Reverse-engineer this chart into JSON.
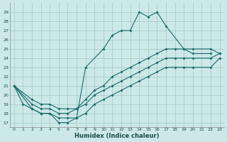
{
  "xlabel": "Humidex (Indice chaleur)",
  "bg_color": "#cce8e8",
  "grid_color": "#aacccc",
  "line_color": "#1a6b6b",
  "xlim": [
    -0.5,
    23.5
  ],
  "ylim": [
    16.5,
    30
  ],
  "xticks": [
    0,
    1,
    2,
    3,
    4,
    5,
    6,
    7,
    8,
    9,
    10,
    11,
    12,
    13,
    14,
    15,
    16,
    17,
    18,
    19,
    20,
    21,
    22,
    23
  ],
  "yticks": [
    17,
    18,
    19,
    20,
    21,
    22,
    23,
    24,
    25,
    26,
    27,
    28,
    29
  ],
  "series1_x": [
    0,
    1,
    2,
    3,
    4,
    5,
    6,
    7,
    8,
    10,
    11,
    12,
    13,
    14,
    15,
    16,
    17,
    19,
    20,
    22
  ],
  "series1_y": [
    21,
    19,
    18.5,
    18,
    18,
    17,
    17,
    17.5,
    23,
    25,
    26.5,
    27,
    27,
    29,
    28.5,
    29,
    27.5,
    25,
    24.5,
    24.5
  ],
  "series2_x": [
    0,
    2,
    3,
    4,
    5,
    6,
    7,
    8,
    9,
    10,
    11,
    12,
    13,
    14,
    15,
    16,
    17,
    18,
    19,
    20,
    22,
    23
  ],
  "series2_y": [
    21,
    19.5,
    19,
    19,
    18.5,
    18.5,
    18.5,
    19.5,
    20.5,
    21,
    22,
    22.5,
    23,
    23.5,
    24,
    24.5,
    25,
    25,
    25,
    25,
    25,
    24.5
  ],
  "series3_x": [
    0,
    2,
    3,
    4,
    5,
    6,
    7,
    8,
    9,
    10,
    11,
    12,
    13,
    14,
    15,
    16,
    17,
    18,
    19,
    20,
    22,
    23
  ],
  "series3_y": [
    21,
    19,
    18.5,
    18.5,
    18,
    18,
    18.5,
    19,
    20,
    20.5,
    21,
    21.5,
    22,
    22.5,
    23,
    23.5,
    24,
    24,
    24,
    24,
    24,
    24.5
  ],
  "series4_x": [
    0,
    2,
    3,
    4,
    5,
    6,
    7,
    8,
    9,
    10,
    11,
    12,
    13,
    14,
    15,
    16,
    17,
    18,
    19,
    20,
    22,
    23
  ],
  "series4_y": [
    21,
    18.5,
    18,
    18,
    17.5,
    17.5,
    17.5,
    18,
    19,
    19.5,
    20,
    20.5,
    21,
    21.5,
    22,
    22.5,
    23,
    23,
    23,
    23,
    23,
    24
  ]
}
